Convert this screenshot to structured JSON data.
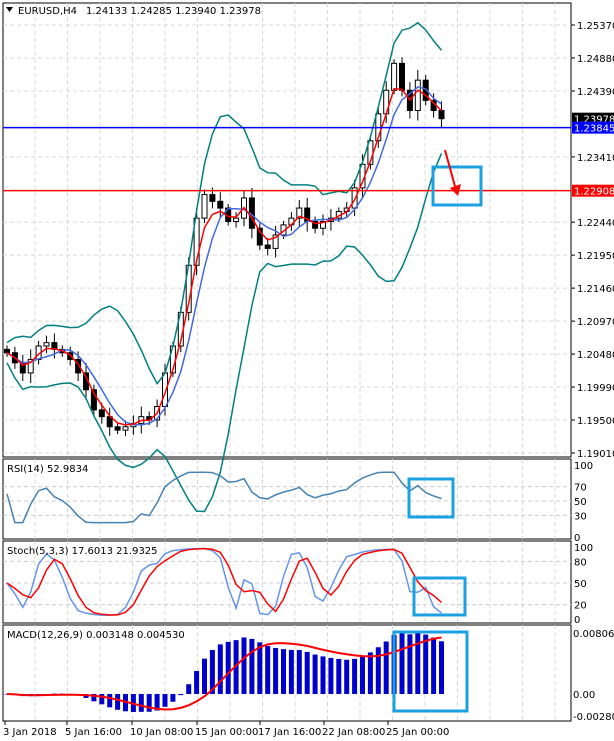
{
  "header": {
    "symbol": "EURUSD,H4",
    "ohlc": "1.24133 1.24285 1.23940 1.23978"
  },
  "colors": {
    "bull": "#000000",
    "bear": "#000000",
    "ma_fast": "#ff0000",
    "ma_slow": "#4169e1",
    "bands": "#008080",
    "rsi": "#4682b4",
    "stoch_main": "#6495ed",
    "stoch_signal": "#ff0000",
    "macd_hist": "#0000cd",
    "macd_signal": "#ff0000",
    "annotation": "#1ba1e2",
    "line_blue": "#0000ff",
    "line_red": "#ff0000"
  },
  "chart_data": [
    {
      "type": "candlestick",
      "title": "EURUSD,H4",
      "closes": [
        1.205,
        1.2035,
        1.202,
        1.204,
        1.206,
        1.2065,
        1.2055,
        1.205,
        1.204,
        1.202,
        1.1995,
        1.1965,
        1.1955,
        1.194,
        1.1935,
        1.194,
        1.1945,
        1.1955,
        1.195,
        1.197,
        1.202,
        1.206,
        1.211,
        1.218,
        1.225,
        1.2285,
        1.2275,
        1.2265,
        1.2245,
        1.225,
        1.228,
        1.2235,
        1.221,
        1.2205,
        1.2225,
        1.224,
        1.225,
        1.2265,
        1.2245,
        1.2235,
        1.2245,
        1.225,
        1.226,
        1.2265,
        1.2295,
        1.233,
        1.2365,
        1.2405,
        1.244,
        1.248,
        1.244,
        1.241,
        1.2455,
        1.2425,
        1.241,
        1.23978
      ],
      "ylim": [
        1.1901,
        1.2537
      ],
      "y_ticks": [
        "1.25370",
        "1.24880",
        "1.24390",
        "1.23410",
        "1.22440",
        "1.21950",
        "1.21460",
        "1.20970",
        "1.20480",
        "1.19990",
        "1.19500",
        "1.19010"
      ],
      "price_labels": [
        {
          "value": "1.23978",
          "kind": "bid"
        },
        {
          "value": "1.23845",
          "kind": "hline-blue"
        },
        {
          "value": "1.22908",
          "kind": "hline-red"
        }
      ],
      "x_ticks": [
        "3 Jan 2018",
        "5 Jan 16:00",
        "10 Jan 08:00",
        "15 Jan 00:00",
        "17 Jan 16:00",
        "22 Jan 08:00",
        "25 Jan 00:00"
      ]
    },
    {
      "type": "line",
      "title": "RSI(14) 52.9834",
      "ylim": [
        0,
        100
      ],
      "y_ticks": [
        "100",
        "70",
        "50",
        "30",
        "0"
      ]
    },
    {
      "type": "line",
      "title": "Stoch(5,3,3) 17.6013 21.9325",
      "ylim": [
        0,
        100
      ],
      "y_ticks": [
        "100",
        "80",
        "50",
        "20",
        "0"
      ]
    },
    {
      "type": "bar",
      "title": "MACD(12,26,9) 0.003148 0.004530",
      "y_ticks": [
        "0.008065",
        "0.00",
        "-0.002809"
      ]
    }
  ]
}
